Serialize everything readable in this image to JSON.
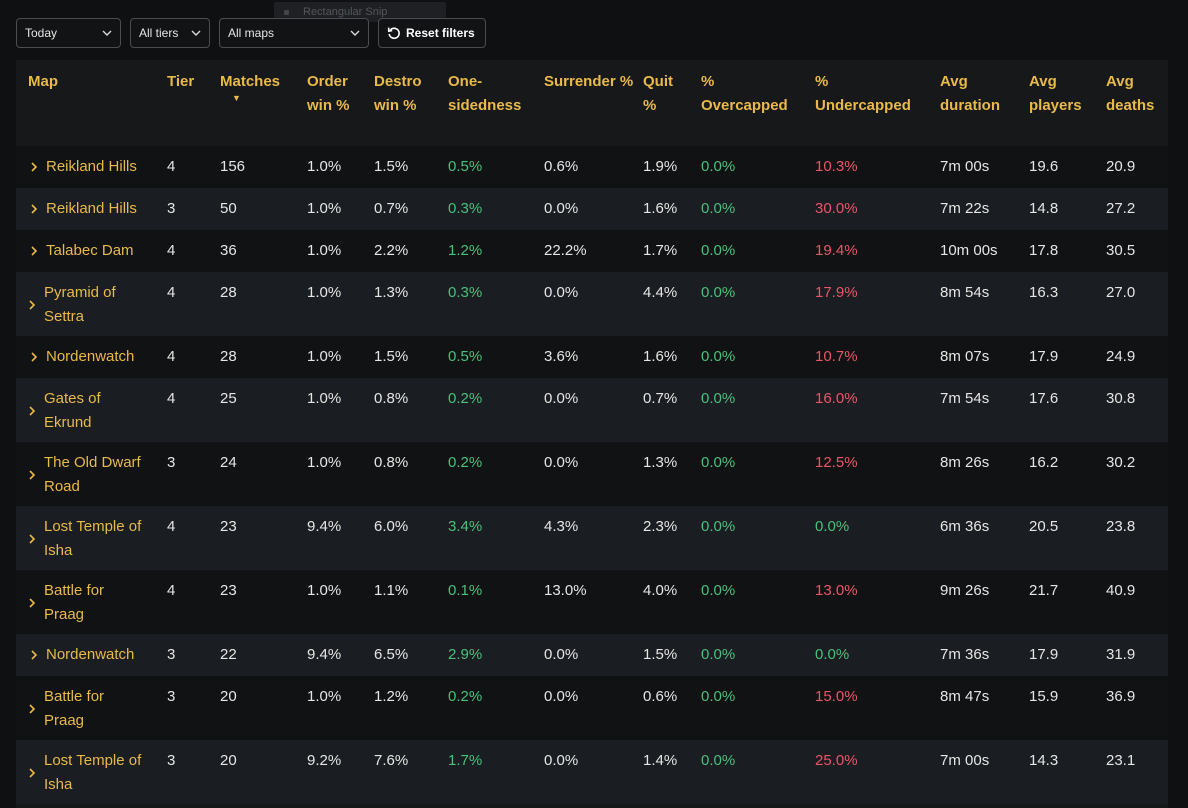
{
  "overlay": {
    "snip_label": "Rectangular Snip"
  },
  "filters": {
    "date": "Today",
    "tier": "All tiers",
    "map": "All maps",
    "reset_label": "Reset filters"
  },
  "columns": [
    {
      "label": "Map"
    },
    {
      "label": "Tier"
    },
    {
      "label": "Matches",
      "sort": "▼"
    },
    {
      "label": "Order win %"
    },
    {
      "label": "Destro win %"
    },
    {
      "label": "One-sidedness"
    },
    {
      "label": "Surrender %"
    },
    {
      "label": "Quit %"
    },
    {
      "label": "% Overcapped"
    },
    {
      "label": "% Undercapped"
    },
    {
      "label": "Avg duration"
    },
    {
      "label": "Avg players"
    },
    {
      "label": "Avg deaths"
    }
  ],
  "rows": [
    [
      "Reikland Hills",
      "4",
      "156",
      "1.0%",
      "1.5%",
      "0.5%",
      "0.6%",
      "1.9%",
      "0.0%",
      "10.3%",
      "7m 00s",
      "19.6",
      "20.9"
    ],
    [
      "Reikland Hills",
      "3",
      "50",
      "1.0%",
      "0.7%",
      "0.3%",
      "0.0%",
      "1.6%",
      "0.0%",
      "30.0%",
      "7m 22s",
      "14.8",
      "27.2"
    ],
    [
      "Talabec Dam",
      "4",
      "36",
      "1.0%",
      "2.2%",
      "1.2%",
      "22.2%",
      "1.7%",
      "0.0%",
      "19.4%",
      "10m 00s",
      "17.8",
      "30.5"
    ],
    [
      "Pyramid of Settra",
      "4",
      "28",
      "1.0%",
      "1.3%",
      "0.3%",
      "0.0%",
      "4.4%",
      "0.0%",
      "17.9%",
      "8m 54s",
      "16.3",
      "27.0"
    ],
    [
      "Nordenwatch",
      "4",
      "28",
      "1.0%",
      "1.5%",
      "0.5%",
      "3.6%",
      "1.6%",
      "0.0%",
      "10.7%",
      "8m 07s",
      "17.9",
      "24.9"
    ],
    [
      "Gates of Ekrund",
      "4",
      "25",
      "1.0%",
      "0.8%",
      "0.2%",
      "0.0%",
      "0.7%",
      "0.0%",
      "16.0%",
      "7m 54s",
      "17.6",
      "30.8"
    ],
    [
      "The Old Dwarf Road",
      "3",
      "24",
      "1.0%",
      "0.8%",
      "0.2%",
      "0.0%",
      "1.3%",
      "0.0%",
      "12.5%",
      "8m 26s",
      "16.2",
      "30.2"
    ],
    [
      "Lost Temple of Isha",
      "4",
      "23",
      "9.4%",
      "6.0%",
      "3.4%",
      "4.3%",
      "2.3%",
      "0.0%",
      "0.0%",
      "6m 36s",
      "20.5",
      "23.8"
    ],
    [
      "Battle for Praag",
      "4",
      "23",
      "1.0%",
      "1.1%",
      "0.1%",
      "13.0%",
      "4.0%",
      "0.0%",
      "13.0%",
      "9m 26s",
      "21.7",
      "40.9"
    ],
    [
      "Nordenwatch",
      "3",
      "22",
      "9.4%",
      "6.5%",
      "2.9%",
      "0.0%",
      "1.5%",
      "0.0%",
      "0.0%",
      "7m 36s",
      "17.9",
      "31.9"
    ],
    [
      "Battle for Praag",
      "3",
      "20",
      "1.0%",
      "1.2%",
      "0.2%",
      "0.0%",
      "0.6%",
      "0.0%",
      "15.0%",
      "8m 47s",
      "15.9",
      "36.9"
    ],
    [
      "Lost Temple of Isha",
      "3",
      "20",
      "9.2%",
      "7.6%",
      "1.7%",
      "0.0%",
      "1.4%",
      "0.0%",
      "25.0%",
      "7m 00s",
      "14.3",
      "23.1"
    ]
  ],
  "colors": {
    "accent": "#e9b949",
    "positive": "#49c07c",
    "negative": "#e8566b"
  },
  "icons": {
    "dropdown": "chevron-down-icon",
    "reset": "reset-icon",
    "expand": "chevron-right-icon"
  }
}
